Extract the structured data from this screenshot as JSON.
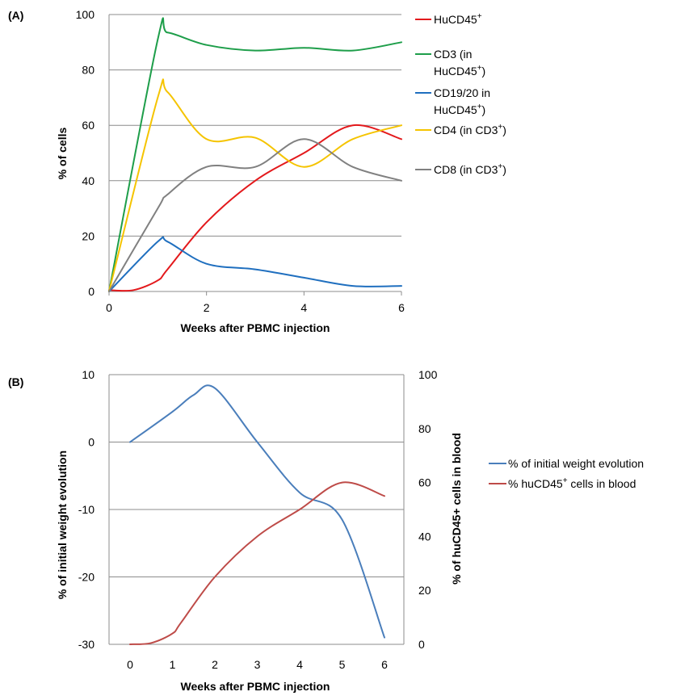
{
  "chart_data": [
    {
      "panel_label": "(A)",
      "type": "line",
      "xlabel": "Weeks after PBMC injection",
      "ylabel": "% of cells",
      "x": [
        0,
        1,
        1.2,
        2,
        3,
        4,
        5,
        6
      ],
      "xticks": [
        0,
        2,
        4,
        6
      ],
      "yticks": [
        0,
        20,
        40,
        60,
        80,
        100
      ],
      "xlim": [
        0,
        6
      ],
      "ylim": [
        0,
        100
      ],
      "grid": true,
      "legend_position": "right",
      "series": [
        {
          "name": "HuCD45+",
          "label": "HuCD45",
          "sup": "+",
          "suffix": "",
          "color": "#e3191c",
          "points": [
            [
              0,
              0.5
            ],
            [
              0.5,
              0.5
            ],
            [
              1,
              4
            ],
            [
              1.2,
              8
            ],
            [
              2,
              25
            ],
            [
              3,
              40
            ],
            [
              4,
              50
            ],
            [
              5,
              60
            ],
            [
              6,
              55
            ]
          ]
        },
        {
          "name": "CD3 (in HuCD45+)",
          "label": "CD3 (in",
          "label2": "HuCD45",
          "sup": "+",
          "suffix": ")",
          "color": "#1e9e4a",
          "points": [
            [
              0,
              0
            ],
            [
              1,
              91
            ],
            [
              1.2,
              93.5
            ],
            [
              2,
              89
            ],
            [
              3,
              87
            ],
            [
              4,
              88
            ],
            [
              5,
              87
            ],
            [
              6,
              90
            ]
          ]
        },
        {
          "name": "CD19/20 in HuCD45+)",
          "label": "CD19/20 in",
          "label2": "HuCD45",
          "sup": "+",
          "suffix": ")",
          "color": "#1f6fbf",
          "points": [
            [
              0,
              0
            ],
            [
              1,
              18
            ],
            [
              1.2,
              18
            ],
            [
              2,
              10
            ],
            [
              3,
              8
            ],
            [
              4,
              5
            ],
            [
              5,
              2
            ],
            [
              6,
              2
            ]
          ]
        },
        {
          "name": "CD4 (in CD3+)",
          "label": "CD4 (in CD3",
          "sup": "+",
          "suffix": ")",
          "color": "#f5c400",
          "points": [
            [
              0,
              0
            ],
            [
              1,
              70
            ],
            [
              1.2,
              72
            ],
            [
              2,
              55
            ],
            [
              3,
              55.5
            ],
            [
              4,
              45
            ],
            [
              5,
              55
            ],
            [
              6,
              60
            ]
          ]
        },
        {
          "name": "CD8 (in CD3+)",
          "label": "CD8 (in CD3",
          "sup": "+",
          "suffix": ")",
          "color": "#808080",
          "points": [
            [
              0,
              0
            ],
            [
              1,
              30
            ],
            [
              1.2,
              35
            ],
            [
              2,
              45
            ],
            [
              3,
              45
            ],
            [
              4,
              55
            ],
            [
              5,
              45
            ],
            [
              6,
              40
            ]
          ]
        }
      ]
    },
    {
      "panel_label": "(B)",
      "type": "line",
      "xlabel": "Weeks after PBMC injection",
      "ylabel_left": "% of initial weight evolution",
      "ylabel_right": "% of huCD45+ cells in blood",
      "x": [
        0,
        1,
        2,
        3,
        4,
        5,
        6
      ],
      "xticks": [
        0,
        1,
        2,
        3,
        4,
        5,
        6
      ],
      "yticks_left": [
        10,
        0,
        -10,
        -20,
        -30
      ],
      "yticks_right": [
        100,
        80,
        60,
        40,
        20,
        0
      ],
      "ylim_left": [
        -30,
        10
      ],
      "ylim_right": [
        0,
        100
      ],
      "grid": true,
      "legend_position": "right",
      "series": [
        {
          "name": "% of initial weight evolution",
          "label": "% of initial weight evolution",
          "axis": "left",
          "color": "#4a7ebb",
          "points": [
            [
              0,
              0
            ],
            [
              1,
              4.5
            ],
            [
              1.5,
              7
            ],
            [
              2,
              8
            ],
            [
              3,
              0
            ],
            [
              4,
              -7.5
            ],
            [
              5,
              -11.5
            ],
            [
              6,
              -29
            ]
          ]
        },
        {
          "name": "% huCD45+ cells in blood",
          "label": "% huCD45",
          "sup": "+",
          "suffix": " cells in blood",
          "axis": "right",
          "color": "#be4b48",
          "points": [
            [
              0,
              0
            ],
            [
              0.5,
              0.5
            ],
            [
              1,
              4
            ],
            [
              1.2,
              8
            ],
            [
              2,
              25
            ],
            [
              3,
              40
            ],
            [
              4,
              50
            ],
            [
              5,
              60
            ],
            [
              6,
              55
            ]
          ]
        }
      ]
    }
  ]
}
